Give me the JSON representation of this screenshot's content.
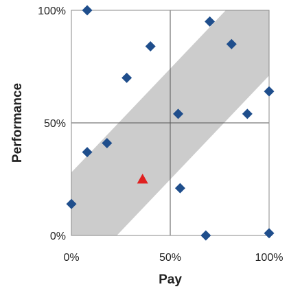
{
  "chart_data": {
    "type": "scatter",
    "xlabel": "Pay",
    "ylabel": "Performance",
    "xlim": [
      0,
      100
    ],
    "ylim": [
      0,
      100
    ],
    "x_ticks": [
      0,
      50,
      100
    ],
    "y_ticks": [
      0,
      50,
      100
    ],
    "x_tick_labels": [
      "0%",
      "50%",
      "100%"
    ],
    "y_tick_labels": [
      "0%",
      "50%",
      "100%"
    ],
    "grid": true,
    "band": {
      "color": "#cccccc",
      "lower_edge": [
        [
          23,
          0
        ],
        [
          100,
          71
        ]
      ],
      "upper_edge": [
        [
          0,
          28
        ],
        [
          100,
          100
        ]
      ]
    },
    "series": [
      {
        "marker": "diamond",
        "color": "#1f4e8c",
        "points": [
          {
            "x": 0,
            "y": 14
          },
          {
            "x": 8,
            "y": 100
          },
          {
            "x": 8,
            "y": 37
          },
          {
            "x": 18,
            "y": 41
          },
          {
            "x": 28,
            "y": 70
          },
          {
            "x": 40,
            "y": 84
          },
          {
            "x": 54,
            "y": 54
          },
          {
            "x": 55,
            "y": 21
          },
          {
            "x": 68,
            "y": 0
          },
          {
            "x": 70,
            "y": 95
          },
          {
            "x": 81,
            "y": 85
          },
          {
            "x": 89,
            "y": 54
          },
          {
            "x": 100,
            "y": 64
          },
          {
            "x": 100,
            "y": 1
          }
        ]
      },
      {
        "marker": "triangle",
        "color": "#e02020",
        "points": [
          {
            "x": 36,
            "y": 25
          }
        ]
      }
    ]
  }
}
